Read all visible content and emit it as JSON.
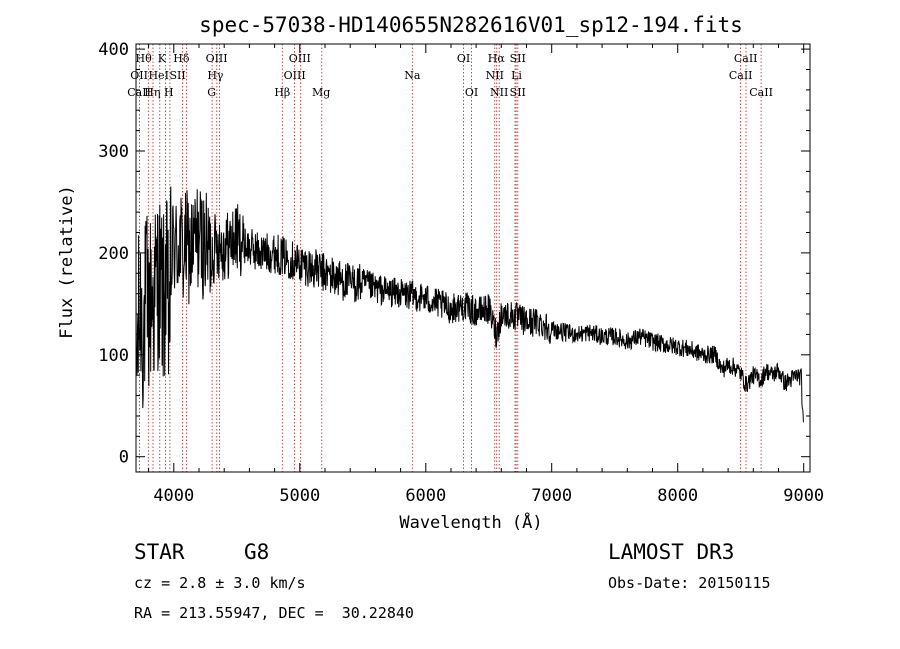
{
  "chart_data": {
    "type": "line",
    "title": "spec-57038-HD140655N282616V01_sp12-194.fits",
    "xlabel": "Wavelength (Å)",
    "ylabel": "Flux (relative)",
    "xlim": [
      3700,
      9050
    ],
    "ylim": [
      -15,
      405
    ],
    "xticks": [
      4000,
      5000,
      6000,
      7000,
      8000,
      9000
    ],
    "yticks": [
      0,
      100,
      200,
      300,
      400
    ],
    "series": [
      {
        "name": "spectrum",
        "x": [
          3700,
          3720,
          3740,
          3760,
          3780,
          3800,
          3820,
          3840,
          3860,
          3880,
          3900,
          3920,
          3940,
          3960,
          3980,
          4000,
          4025,
          4050,
          4075,
          4100,
          4125,
          4150,
          4175,
          4200,
          4250,
          4300,
          4350,
          4400,
          4450,
          4500,
          4600,
          4700,
          4800,
          4900,
          5000,
          5100,
          5200,
          5300,
          5400,
          5500,
          5600,
          5700,
          5800,
          5900,
          6000,
          6100,
          6200,
          6300,
          6400,
          6500,
          6562,
          6600,
          6700,
          6800,
          6900,
          7000,
          7100,
          7200,
          7300,
          7400,
          7500,
          7600,
          7700,
          7800,
          7900,
          8000,
          8100,
          8200,
          8300,
          8350,
          8400,
          8450,
          8500,
          8542,
          8600,
          8662,
          8700,
          8750,
          8800,
          8850,
          8900,
          8950,
          8980,
          9000
        ],
        "y": [
          80,
          130,
          150,
          120,
          160,
          140,
          160,
          150,
          170,
          175,
          165,
          150,
          175,
          130,
          190,
          210,
          200,
          215,
          195,
          210,
          200,
          205,
          215,
          215,
          205,
          200,
          210,
          205,
          210,
          215,
          205,
          200,
          200,
          195,
          190,
          185,
          180,
          175,
          170,
          170,
          165,
          162,
          160,
          158,
          155,
          150,
          145,
          148,
          142,
          145,
          120,
          140,
          138,
          132,
          132,
          125,
          122,
          120,
          122,
          118,
          118,
          113,
          118,
          113,
          110,
          108,
          105,
          100,
          100,
          85,
          90,
          88,
          82,
          70,
          80,
          75,
          85,
          80,
          85,
          72,
          76,
          80,
          78,
          20
        ]
      }
    ],
    "lines": [
      {
        "name": "Hθ",
        "wl": 3798
      },
      {
        "name": "OII",
        "wl": 3727
      },
      {
        "name": "CaII K",
        "wl": 3934
      },
      {
        "name": "CaII H",
        "wl": 3969
      },
      {
        "name": "Hη",
        "wl": 3835
      },
      {
        "name": "HeI",
        "wl": 3889
      },
      {
        "name": "SII",
        "wl": 4070
      },
      {
        "name": "Hδ",
        "wl": 4102
      },
      {
        "name": "G",
        "wl": 4304
      },
      {
        "name": "Hγ",
        "wl": 4341
      },
      {
        "name": "OIII",
        "wl": 4363
      },
      {
        "name": "Hβ",
        "wl": 4861
      },
      {
        "name": "OIII",
        "wl": 4959
      },
      {
        "name": "OIII",
        "wl": 5007
      },
      {
        "name": "Mg",
        "wl": 5175
      },
      {
        "name": "Na",
        "wl": 5893
      },
      {
        "name": "OI",
        "wl": 6300
      },
      {
        "name": "OI",
        "wl": 6364
      },
      {
        "name": "NII",
        "wl": 6548
      },
      {
        "name": "Hα",
        "wl": 6563
      },
      {
        "name": "NII",
        "wl": 6583
      },
      {
        "name": "Li",
        "wl": 6708
      },
      {
        "name": "SII",
        "wl": 6717
      },
      {
        "name": "SII",
        "wl": 6731
      },
      {
        "name": "CaII",
        "wl": 8498
      },
      {
        "name": "CaII",
        "wl": 8542
      },
      {
        "name": "CaII",
        "wl": 8662
      }
    ],
    "line_labels": [
      {
        "text": "Hθ",
        "row": 1,
        "wl": 3760
      },
      {
        "text": "K",
        "row": 1,
        "wl": 3905
      },
      {
        "text": "Hδ",
        "row": 1,
        "wl": 4060
      },
      {
        "text": "OIII",
        "row": 1,
        "wl": 4340
      },
      {
        "text": "OIII",
        "row": 1,
        "wl": 5000
      },
      {
        "text": "OI",
        "row": 1,
        "wl": 6300
      },
      {
        "text": "Hα",
        "row": 1,
        "wl": 6560
      },
      {
        "text": "SII",
        "row": 1,
        "wl": 6730
      },
      {
        "text": "CaII",
        "row": 1,
        "wl": 8540
      },
      {
        "text": "OII",
        "row": 2,
        "wl": 3725
      },
      {
        "text": "HeI",
        "row": 2,
        "wl": 3880
      },
      {
        "text": "SII",
        "row": 2,
        "wl": 4030
      },
      {
        "text": "Hγ",
        "row": 2,
        "wl": 4330
      },
      {
        "text": "OIII",
        "row": 2,
        "wl": 4960
      },
      {
        "text": "Na",
        "row": 2,
        "wl": 5893
      },
      {
        "text": "NII",
        "row": 2,
        "wl": 6548
      },
      {
        "text": "Li",
        "row": 2,
        "wl": 6720
      },
      {
        "text": "CaII",
        "row": 2,
        "wl": 8500
      },
      {
        "text": "CaII",
        "row": 3,
        "wl": 3725
      },
      {
        "text": "Hη",
        "row": 3,
        "wl": 3830
      },
      {
        "text": "H",
        "row": 3,
        "wl": 3960
      },
      {
        "text": "G",
        "row": 3,
        "wl": 4300
      },
      {
        "text": "Hβ",
        "row": 3,
        "wl": 4861
      },
      {
        "text": "Mg",
        "row": 3,
        "wl": 5170
      },
      {
        "text": "OI",
        "row": 3,
        "wl": 6364
      },
      {
        "text": "NII",
        "row": 3,
        "wl": 6583
      },
      {
        "text": "SII",
        "row": 3,
        "wl": 6731
      },
      {
        "text": "CaII",
        "row": 3,
        "wl": 8662
      }
    ],
    "spectrum_color": "#000000",
    "line_color": "#b22222"
  },
  "info": {
    "object_class": "STAR",
    "subclass": "G8",
    "survey": "LAMOST DR3",
    "redshift": "cz = 2.8 ± 3.0 km/s",
    "obs_date": "Obs-Date: 20150115",
    "coords": "RA = 213.55947, DEC =  30.22840"
  }
}
